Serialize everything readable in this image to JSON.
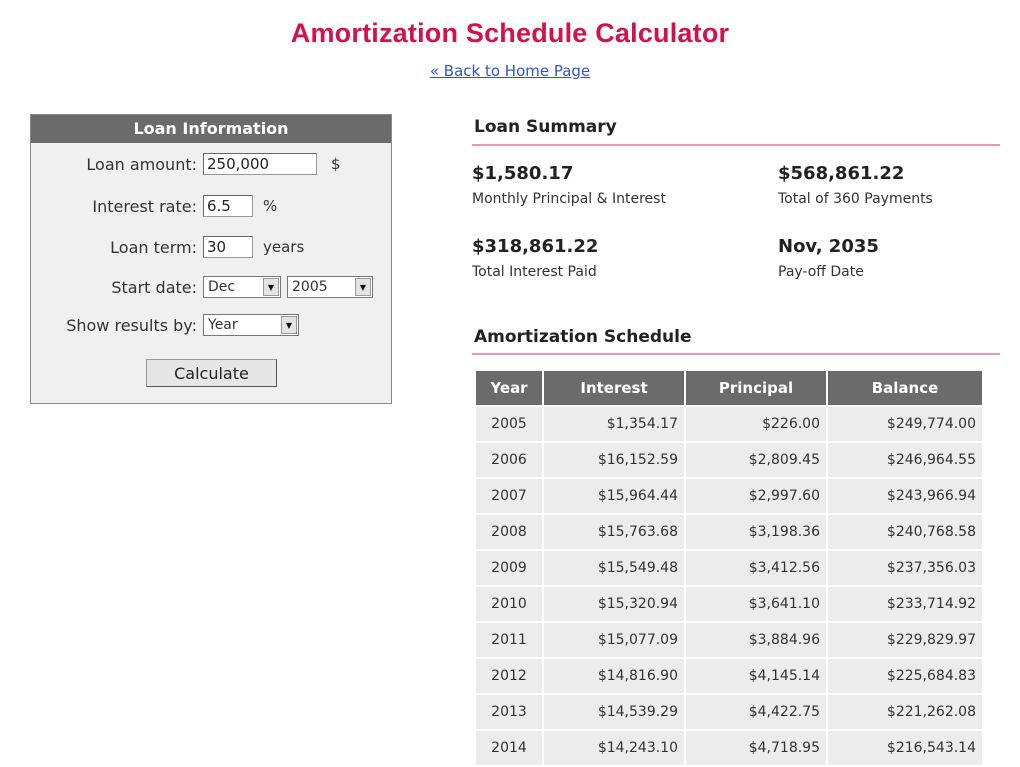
{
  "header": {
    "title": "Amortization Schedule Calculator",
    "back_link": "« Back to Home Page"
  },
  "loan_info": {
    "heading": "Loan Information",
    "amount_label": "Loan amount:",
    "amount_value": "250,000",
    "amount_unit": "$",
    "rate_label": "Interest rate:",
    "rate_value": "6.5",
    "rate_unit": "%",
    "term_label": "Loan term:",
    "term_value": "30",
    "term_unit": "years",
    "start_label": "Start date:",
    "start_month": "Dec",
    "start_year": "2005",
    "show_label": "Show results by:",
    "show_value": "Year",
    "calculate_label": "Calculate"
  },
  "summary": {
    "heading": "Loan Summary",
    "monthly_value": "$1,580.17",
    "monthly_label": "Monthly Principal & Interest",
    "total_value": "$568,861.22",
    "total_label": "Total of 360 Payments",
    "interest_value": "$318,861.22",
    "interest_label": "Total Interest Paid",
    "payoff_value": "Nov, 2035",
    "payoff_label": "Pay-off Date"
  },
  "schedule": {
    "heading": "Amortization Schedule",
    "columns": [
      "Year",
      "Interest",
      "Principal",
      "Balance"
    ],
    "rows": [
      [
        "2005",
        "$1,354.17",
        "$226.00",
        "$249,774.00"
      ],
      [
        "2006",
        "$16,152.59",
        "$2,809.45",
        "$246,964.55"
      ],
      [
        "2007",
        "$15,964.44",
        "$2,997.60",
        "$243,966.94"
      ],
      [
        "2008",
        "$15,763.68",
        "$3,198.36",
        "$240,768.58"
      ],
      [
        "2009",
        "$15,549.48",
        "$3,412.56",
        "$237,356.03"
      ],
      [
        "2010",
        "$15,320.94",
        "$3,641.10",
        "$233,714.92"
      ],
      [
        "2011",
        "$15,077.09",
        "$3,884.96",
        "$229,829.97"
      ],
      [
        "2012",
        "$14,816.90",
        "$4,145.14",
        "$225,684.83"
      ],
      [
        "2013",
        "$14,539.29",
        "$4,422.75",
        "$221,262.08"
      ],
      [
        "2014",
        "$14,243.10",
        "$4,718.95",
        "$216,543.14"
      ]
    ]
  },
  "colors": {
    "title": "#d4124a",
    "panel_header": "#6b6b6b",
    "rule": "#e89aae",
    "link": "#3355cc"
  }
}
